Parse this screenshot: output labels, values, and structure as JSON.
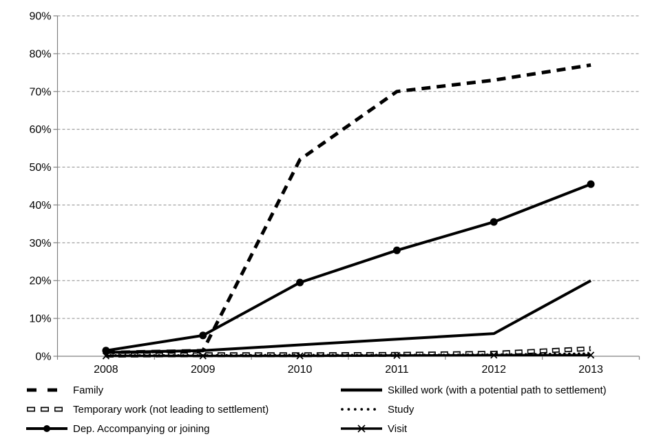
{
  "chart_data": {
    "type": "line",
    "title": "",
    "xlabel": "",
    "ylabel": "",
    "categories": [
      "2008",
      "2009",
      "2010",
      "2011",
      "2012",
      "2013"
    ],
    "y_axis": {
      "min": 0,
      "max": 90,
      "step": 10,
      "tick_labels": [
        "0%",
        "10%",
        "20%",
        "30%",
        "40%",
        "50%",
        "60%",
        "70%",
        "80%",
        "90%"
      ],
      "grid": "dashed-horizontal"
    },
    "series": [
      {
        "id": "family",
        "name": "Family",
        "style": "thick-dash",
        "values": [
          1,
          1.5,
          52,
          70,
          73,
          77
        ]
      },
      {
        "id": "skilled-work",
        "name": "Skilled work (with a potential path to settlement)",
        "style": "solid",
        "values": [
          1,
          1.5,
          3,
          4.5,
          6,
          20
        ]
      },
      {
        "id": "temporary-work",
        "name": "Temporary work (not leading to settlement)",
        "style": "hollow-dash",
        "values": [
          0.3,
          0.4,
          0.4,
          0.5,
          0.8,
          2
        ]
      },
      {
        "id": "study",
        "name": "Study",
        "style": "dotted",
        "values": [
          0.2,
          0.2,
          0.3,
          0.3,
          0.4,
          0.7
        ]
      },
      {
        "id": "dep-accompanying",
        "name": "Dep. Accompanying or joining",
        "style": "solid-circle",
        "values": [
          1.5,
          5.5,
          19.5,
          28,
          35.5,
          45.5
        ]
      },
      {
        "id": "visit",
        "name": "Visit",
        "style": "solid-x",
        "values": [
          0.1,
          0.1,
          0.1,
          0.2,
          0.3,
          0.3
        ]
      }
    ],
    "legend": {
      "position": "bottom",
      "columns": [
        [
          0,
          2,
          4
        ],
        [
          1,
          3,
          5
        ]
      ]
    },
    "colors": {
      "series": "#000000",
      "gridline": "#8c8c8c",
      "axis": "#808080",
      "background": "#ffffff",
      "text": "#000000"
    }
  }
}
